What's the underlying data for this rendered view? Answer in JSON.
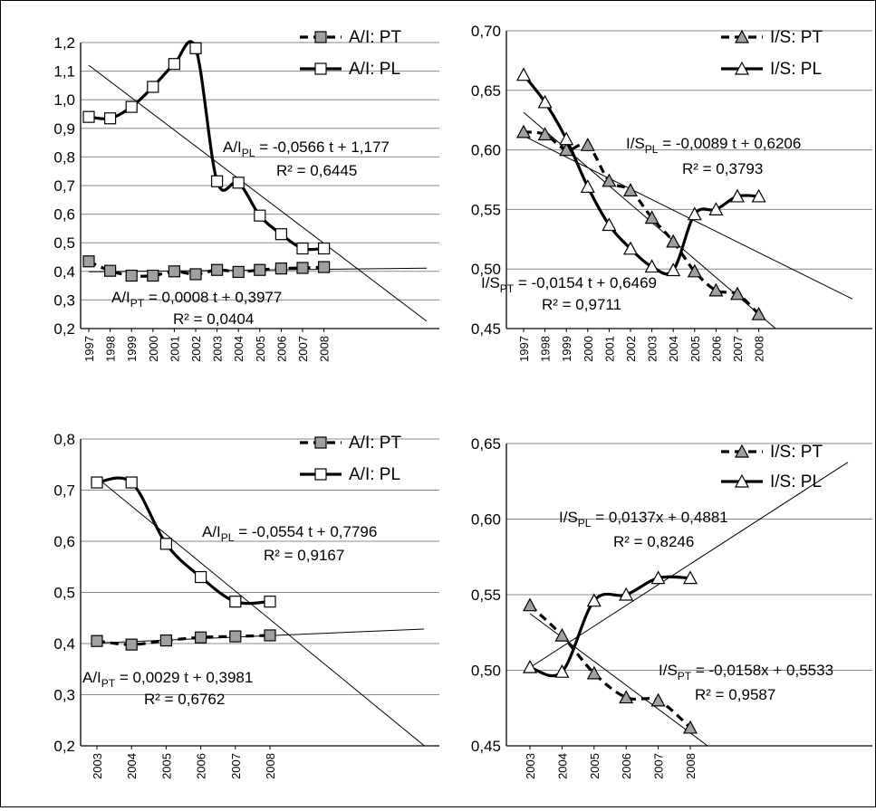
{
  "chart_data": [
    {
      "type": "line",
      "categories": [
        "1997",
        "1998",
        "1999",
        "2000",
        "2001",
        "2002",
        "2003",
        "2004",
        "2005",
        "2006",
        "2007",
        "2008"
      ],
      "ylim": [
        0.2,
        1.2
      ],
      "yticks": [
        "0,2",
        "0,3",
        "0,4",
        "0,5",
        "0,6",
        "0,7",
        "0,8",
        "0,9",
        "1,0",
        "1,1",
        "1,2"
      ],
      "grid": true,
      "legend_position": "top-right",
      "series": [
        {
          "name": "A/I: PT",
          "style": "dashed",
          "marker": "square",
          "marker_fill": "#a0a0a0",
          "values": [
            0.435,
            0.402,
            0.385,
            0.385,
            0.4,
            0.39,
            0.405,
            0.398,
            0.405,
            0.41,
            0.412,
            0.415
          ]
        },
        {
          "name": "A/I: PL",
          "style": "solid",
          "marker": "square",
          "marker_fill": "#ffffff",
          "values": [
            0.94,
            0.935,
            0.975,
            1.045,
            1.125,
            1.18,
            0.715,
            0.71,
            0.595,
            0.53,
            0.48,
            0.48
          ]
        }
      ],
      "trendlines": [
        {
          "series": "A/I: PL",
          "slope": -0.0566,
          "intercept": 1.177
        },
        {
          "series": "A/I: PT",
          "slope": 0.0008,
          "intercept": 0.3977
        }
      ],
      "annotations": [
        {
          "name": "A/I",
          "sub": "PL",
          "rest": " = -0,0566 t + 1,177",
          "r2": "R² = 0,6445"
        },
        {
          "name": "A/I",
          "sub": "PT",
          "rest": " = 0,0008 t + 0,3977",
          "r2": "R² = 0,0404"
        }
      ]
    },
    {
      "type": "line",
      "categories": [
        "1997",
        "1998",
        "1999",
        "2000",
        "2001",
        "2002",
        "2003",
        "2004",
        "2005",
        "2006",
        "2007",
        "2008"
      ],
      "ylim": [
        0.45,
        0.7
      ],
      "yticks": [
        "0,45",
        "0,50",
        "0,55",
        "0,60",
        "0,65",
        "0,70"
      ],
      "grid": true,
      "legend_position": "top-right",
      "series": [
        {
          "name": "I/S: PT",
          "style": "dashed",
          "marker": "triangle",
          "marker_fill": "#a0a0a0",
          "values": [
            0.615,
            0.613,
            0.6,
            0.604,
            0.574,
            0.566,
            0.543,
            0.523,
            0.498,
            0.482,
            0.479,
            0.462
          ]
        },
        {
          "name": "I/S: PL",
          "style": "solid",
          "marker": "triangle",
          "marker_fill": "#ffffff",
          "values": [
            0.663,
            0.64,
            0.609,
            0.569,
            0.537,
            0.517,
            0.502,
            0.499,
            0.546,
            0.55,
            0.561,
            0.561
          ]
        }
      ],
      "trendlines": [
        {
          "series": "I/S: PL",
          "slope": -0.0089,
          "intercept": 0.6206
        },
        {
          "series": "I/S: PT",
          "slope": -0.0154,
          "intercept": 0.6469
        }
      ],
      "annotations": [
        {
          "name": "I/S",
          "sub": "PL",
          "rest": " = -0,0089 t + 0,6206",
          "r2": "R² = 0,3793"
        },
        {
          "name": "I/S",
          "sub": "PT",
          "rest": " = -0,0154 t + 0,6469",
          "r2": "R² = 0,9711"
        }
      ]
    },
    {
      "type": "line",
      "categories": [
        "2003",
        "2004",
        "2005",
        "2006",
        "2007",
        "2008"
      ],
      "ylim": [
        0.2,
        0.8
      ],
      "yticks": [
        "0,2",
        "0,3",
        "0,4",
        "0,5",
        "0,6",
        "0,7",
        "0,8"
      ],
      "grid": true,
      "legend_position": "top-right",
      "series": [
        {
          "name": "A/I: PT",
          "style": "dashed",
          "marker": "square",
          "marker_fill": "#a0a0a0",
          "values": [
            0.405,
            0.398,
            0.406,
            0.412,
            0.414,
            0.416
          ]
        },
        {
          "name": "A/I: PL",
          "style": "solid",
          "marker": "square",
          "marker_fill": "#ffffff",
          "values": [
            0.715,
            0.715,
            0.595,
            0.53,
            0.482,
            0.482
          ]
        }
      ],
      "trendlines": [
        {
          "series": "A/I: PL",
          "slope": -0.0554,
          "intercept": 0.7796
        },
        {
          "series": "A/I: PT",
          "slope": 0.0029,
          "intercept": 0.3981
        }
      ],
      "annotations": [
        {
          "name": "A/I",
          "sub": "PL",
          "rest": "  = -0,0554 t + 0,7796",
          "r2": "R² = 0,9167"
        },
        {
          "name": "A/I",
          "sub": "PT",
          "rest": " = 0,0029 t + 0,3981",
          "r2": "R² = 0,6762"
        }
      ]
    },
    {
      "type": "line",
      "categories": [
        "2003",
        "2004",
        "2005",
        "2006",
        "2007",
        "2008"
      ],
      "ylim": [
        0.45,
        0.65
      ],
      "yticks": [
        "0,45",
        "0,50",
        "0,55",
        "0,60",
        "0,65"
      ],
      "grid": true,
      "legend_position": "top-right",
      "series": [
        {
          "name": "I/S: PT",
          "style": "dashed",
          "marker": "triangle",
          "marker_fill": "#a0a0a0",
          "values": [
            0.543,
            0.523,
            0.498,
            0.482,
            0.48,
            0.462
          ]
        },
        {
          "name": "I/S: PL",
          "style": "solid",
          "marker": "triangle",
          "marker_fill": "#ffffff",
          "values": [
            0.502,
            0.499,
            0.546,
            0.55,
            0.561,
            0.561
          ]
        }
      ],
      "trendlines": [
        {
          "series": "I/S: PL",
          "slope": 0.0137,
          "intercept": 0.4881
        },
        {
          "series": "I/S: PT",
          "slope": -0.0158,
          "intercept": 0.5533
        }
      ],
      "annotations": [
        {
          "name": "I/S",
          "sub": "PL",
          "rest": " = 0,0137x + 0,4881",
          "r2": "R² = 0,8246"
        },
        {
          "name": "I/S",
          "sub": "PT",
          "rest": " = -0,0158x + 0,5533",
          "r2": "R² = 0,9587"
        }
      ]
    }
  ]
}
